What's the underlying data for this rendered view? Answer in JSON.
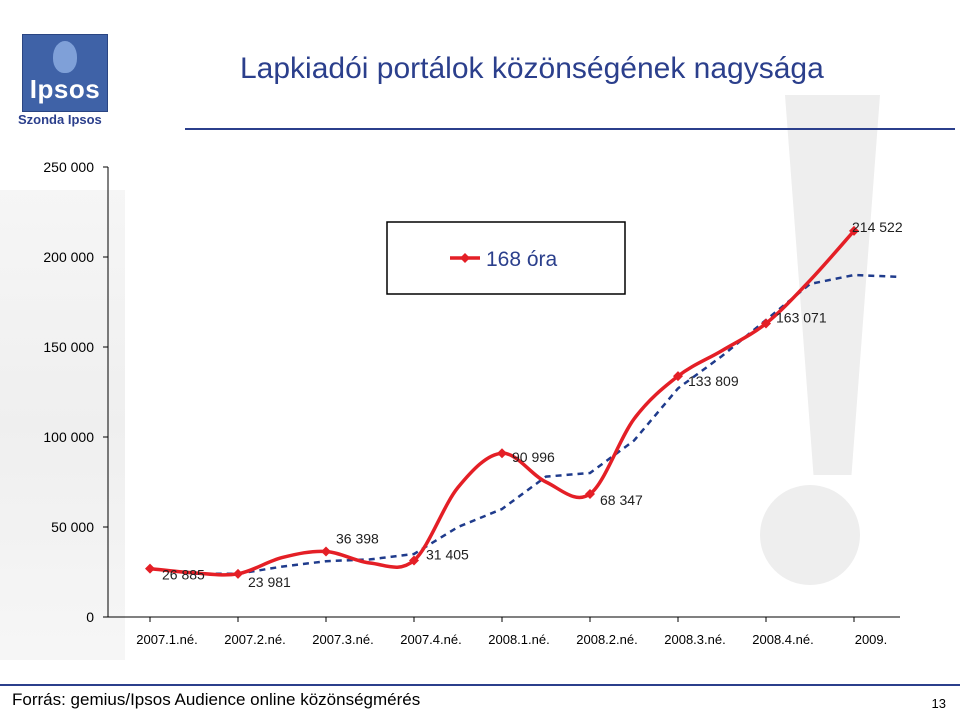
{
  "header": {
    "title": "Lapkiadói portálok közönségének nagysága",
    "brand": "Szonda Ipsos",
    "logo_text": "Ipsos"
  },
  "footer": {
    "source": "Forrás: gemius/Ipsos Audience online közönségmérés",
    "page_number": "13"
  },
  "colors": {
    "accent": "#2b3f8c",
    "series_red": "#e41f26",
    "series_dashed": "#1f3b8c"
  },
  "chart_data": {
    "type": "line",
    "categories": [
      "2007.1.né.",
      "2007.2.né.",
      "2007.3.né.",
      "2007.4.né.",
      "2008.1.né.",
      "2008.2.né.",
      "2008.3.né.",
      "2008.4.né.",
      "2009."
    ],
    "x": [
      0,
      0.5,
      1,
      1.5,
      2,
      2.5,
      3,
      3.5,
      4,
      4.5,
      5,
      5.5,
      6,
      6.5,
      7,
      7.5,
      8,
      8.5
    ],
    "ylim": [
      0,
      250000
    ],
    "yticks": [
      "0",
      "50 000",
      "100 000",
      "150 000",
      "200 000",
      "250 000"
    ],
    "ytick_values": [
      0,
      50000,
      100000,
      150000,
      200000,
      250000
    ],
    "series": [
      {
        "name": "168 óra",
        "style": "solid",
        "values": [
          26885,
          24500,
          23981,
          33000,
          36398,
          30000,
          31405,
          72000,
          90996,
          75000,
          68347,
          110000,
          133809,
          148000,
          163071,
          187000,
          214522,
          null
        ],
        "labels": [
          "26 885",
          null,
          "23 981",
          null,
          "36 398",
          null,
          "31 405",
          null,
          "90 996",
          null,
          "68 347",
          null,
          "133 809",
          null,
          "163 071",
          null,
          "214 522",
          null
        ]
      },
      {
        "style": "dashed",
        "values": [
          26885,
          24000,
          24000,
          28000,
          31000,
          32000,
          35000,
          50000,
          60000,
          78000,
          80000,
          98000,
          127000,
          145000,
          165000,
          185000,
          190000,
          189000
        ]
      }
    ],
    "legend": {
      "entries": [
        "168 óra"
      ],
      "position": "top-center"
    },
    "grid": false
  }
}
